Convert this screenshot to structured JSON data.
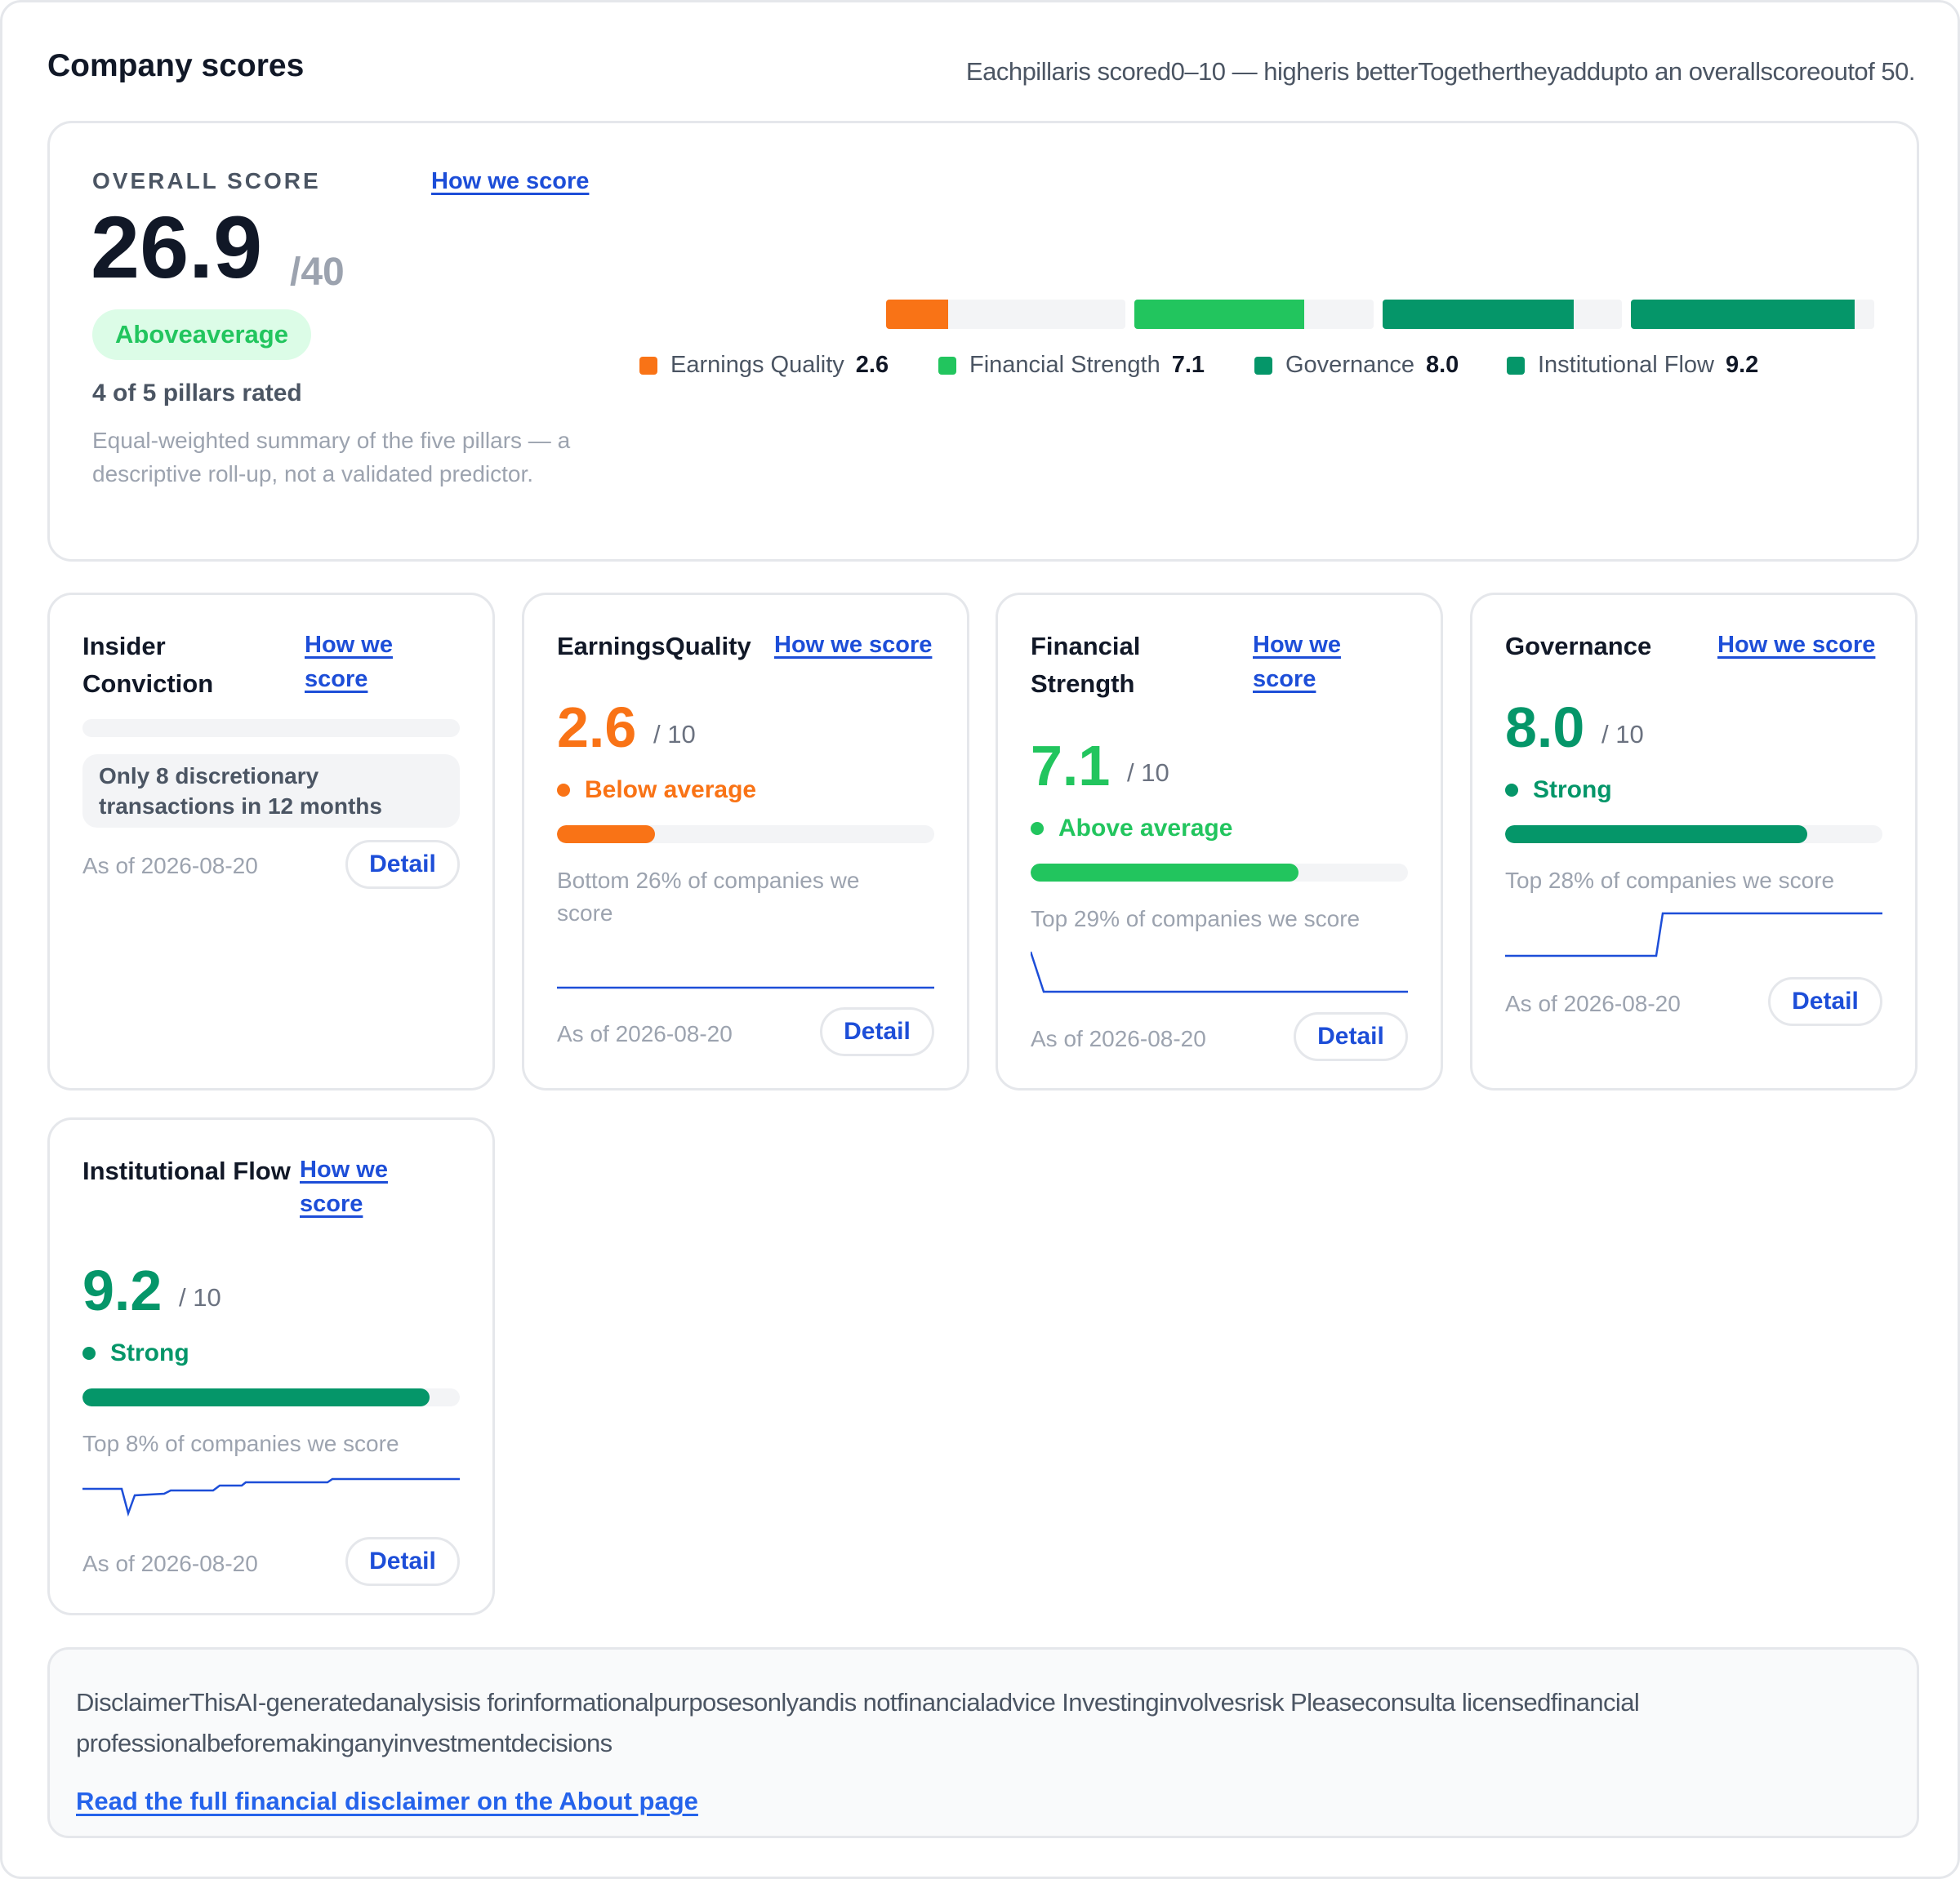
{
  "page": {
    "title": "Company scores",
    "subtitle": "Eachpillaris scored0–10 — higheris betterTogethertheyaddupto an overallscoreoutof 50."
  },
  "overall": {
    "label": "OVERALL SCORE",
    "how_link": "How we score",
    "score": "26.9",
    "denominator": "/40",
    "badge": "Aboveaverage",
    "rated": "4 of 5 pillars rated",
    "description": "Equal-weighted summary of the five pillars — a descriptive roll-up, not a validated predictor.",
    "segments": [
      {
        "name": "Earnings Quality",
        "value": "2.6",
        "fraction": 0.26,
        "color": "#f97316"
      },
      {
        "name": "Financial Strength",
        "value": "7.1",
        "fraction": 0.71,
        "color": "#22c55e"
      },
      {
        "name": "Governance",
        "value": "8.0",
        "fraction": 0.8,
        "color": "#059669"
      },
      {
        "name": "Institutional Flow",
        "value": "9.2",
        "fraction": 0.92,
        "color": "#059669"
      }
    ]
  },
  "pillars": {
    "insider": {
      "title": "Insider Conviction",
      "how_link": "How we score",
      "fraction": 0,
      "note": "Only 8 discretionary transactions in 12 months",
      "asof": "As of 2026-08-20",
      "detail": "Detail"
    },
    "earnings": {
      "title": "EarningsQuality",
      "how_link": "How we score",
      "score": "2.6",
      "denom": "/ 10",
      "status": "Below average",
      "color": "#f97316",
      "fraction": 0.26,
      "percentile": "Bottom 26% of companies we score",
      "asof": "As of 2026-08-20",
      "detail": "Detail"
    },
    "financial": {
      "title": "Financial Strength",
      "how_link": "How we score",
      "score": "7.1",
      "denom": "/ 10",
      "status": "Above average",
      "color": "#22c55e",
      "fraction": 0.71,
      "percentile": "Top 29% of companies we score",
      "asof": "As of 2026-08-20",
      "detail": "Detail"
    },
    "governance": {
      "title": "Governance",
      "how_link": "How we score",
      "score": "8.0",
      "denom": "/ 10",
      "status": "Strong",
      "color": "#059669",
      "fraction": 0.8,
      "percentile": "Top 28% of companies we score",
      "asof": "As of 2026-08-20",
      "detail": "Detail"
    },
    "institutional": {
      "title": "Institutional Flow",
      "how_link": "How we score",
      "score": "9.2",
      "denom": "/ 10",
      "status": "Strong",
      "color": "#059669",
      "fraction": 0.92,
      "percentile": "Top 8% of companies we score",
      "asof": "As of 2026-08-20",
      "detail": "Detail"
    }
  },
  "disclaimer": {
    "text": "DisclaimerThisAI-generatedanalysisis forinformationalpurposesonlyandis notfinancialadvice Investinginvolvesrisk Pleaseconsulta licensedfinancial professionalbeforemakinganyinvestmentdecisions",
    "link": "Read the full financial disclaimer on the About page"
  }
}
